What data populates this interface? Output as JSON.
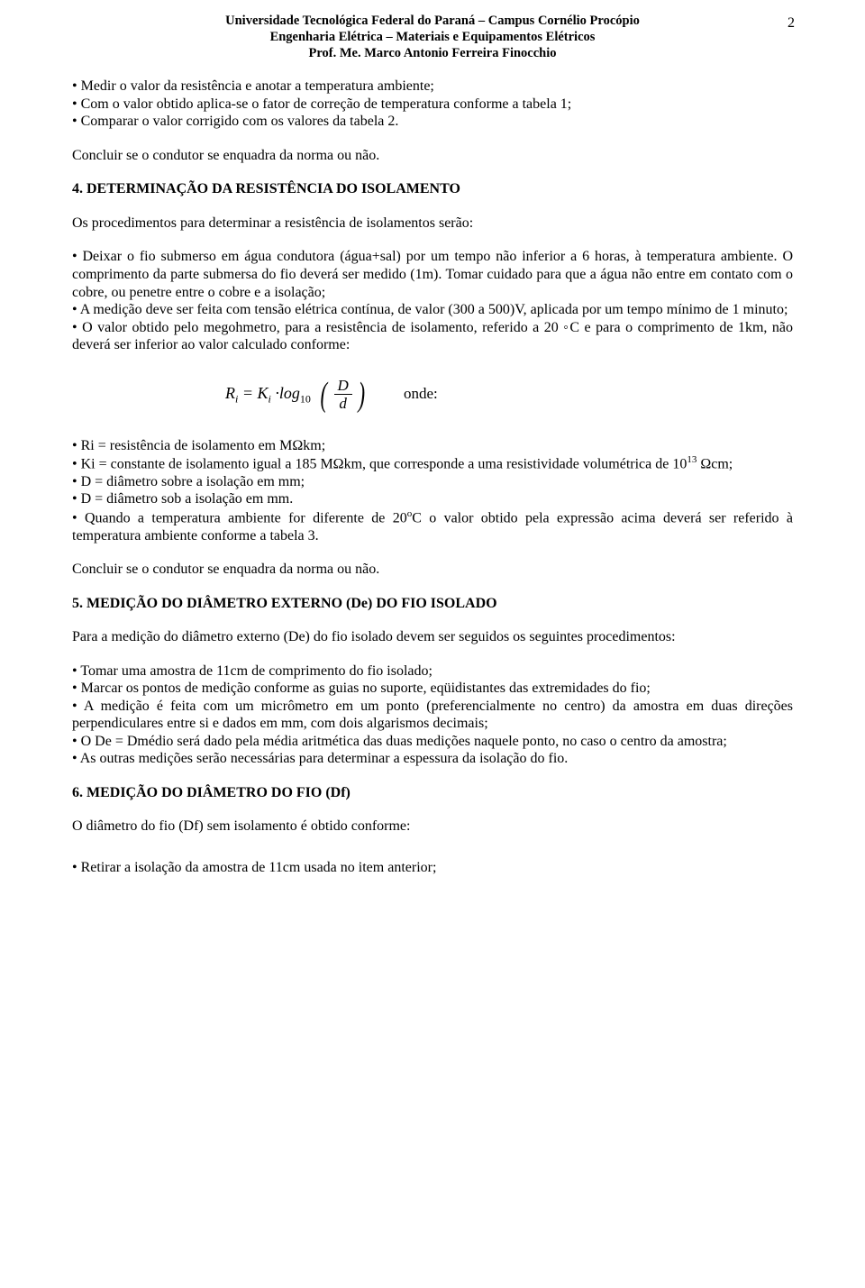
{
  "pageNumber": "2",
  "header": {
    "line1": "Universidade Tecnológica Federal do Paraná – Campus Cornélio Procópio",
    "line2": "Engenharia Elétrica – Materiais e Equipamentos Elétricos",
    "line3": "Prof. Me. Marco Antonio Ferreira Finocchio"
  },
  "introBullets": [
    "• Medir o valor da resistência e anotar a temperatura ambiente;",
    "• Com o valor obtido aplica-se o fator de correção de temperatura conforme a tabela 1;",
    "• Comparar o valor corrigido com os valores da tabela 2."
  ],
  "concluir1": "Concluir se o condutor se enquadra da norma ou não.",
  "sec4": {
    "title": "4. DETERMINAÇÃO DA RESISTÊNCIA DO ISOLAMENTO",
    "para1": "Os procedimentos para determinar a resistência de isolamentos serão:",
    "bul1": "• Deixar o fio submerso em água condutora (água+sal) por um tempo não inferior a 6 horas, à temperatura ambiente. O comprimento da parte submersa do fio deverá ser medido (1m). Tomar cuidado para que a água não entre em contato com o cobre, ou penetre entre o cobre e a isolação;",
    "bul2": "• A medição deve ser feita com tensão elétrica contínua, de valor (300 a 500)V, aplicada por um tempo mínimo de 1 minuto;",
    "bul3": "• O valor obtido pelo megohmetro, para a resistência de isolamento, referido a 20 ◦C e para o comprimento de 1km, não deverá ser inferior ao valor calculado conforme:"
  },
  "formula": {
    "riLabel": "R",
    "riSub": "i",
    "eq": " = ",
    "kLabel": "K",
    "kSub": "i",
    "dot": " ·log",
    "logSub": "10",
    "fracNum": "D",
    "fracDen": "d",
    "onde": "onde:"
  },
  "postFormula": {
    "b1": "• Ri = resistência de isolamento em MΩkm;",
    "b2a": "• Ki = constante de isolamento igual a 185 MΩkm, que corresponde a uma resistividade volumétrica de 10",
    "b2sup": "13",
    "b2b": " Ωcm;",
    "b3": "• D = diâmetro sobre a isolação em mm;",
    "b4": "• D = diâmetro sob a isolação em mm.",
    "b5a": "• Quando a temperatura ambiente for diferente de 20",
    "b5sup": "o",
    "b5b": "C o valor obtido pela expressão acima deverá ser referido à temperatura ambiente conforme a tabela 3."
  },
  "concluir2": "Concluir se o condutor se enquadra da norma ou não.",
  "sec5": {
    "title": "5. MEDIÇÃO DO DIÂMETRO EXTERNO (De) DO FIO ISOLADO",
    "para1": "Para a medição do diâmetro externo (De) do fio isolado devem ser seguidos os seguintes procedimentos:",
    "b1": "• Tomar uma amostra de 11cm de comprimento do fio isolado;",
    "b2": "• Marcar os pontos de medição conforme as guias no suporte, eqüidistantes das extremidades do fio;",
    "b3": "• A medição é feita com um micrômetro em um ponto (preferencialmente no centro) da amostra em duas direções perpendiculares entre si e dados em mm, com dois algarismos decimais;",
    "b4": "• O De = Dmédio será dado pela média aritmética das duas medições naquele ponto, no caso o centro da amostra;",
    "b5": "• As outras medições serão necessárias para determinar a espessura da isolação do fio."
  },
  "sec6": {
    "title": "6. MEDIÇÃO DO DIÂMETRO DO FIO (Df)",
    "para1": "O diâmetro do fio (Df) sem isolamento é obtido conforme:",
    "b1": "• Retirar a isolação da amostra de 11cm usada no item anterior;"
  }
}
